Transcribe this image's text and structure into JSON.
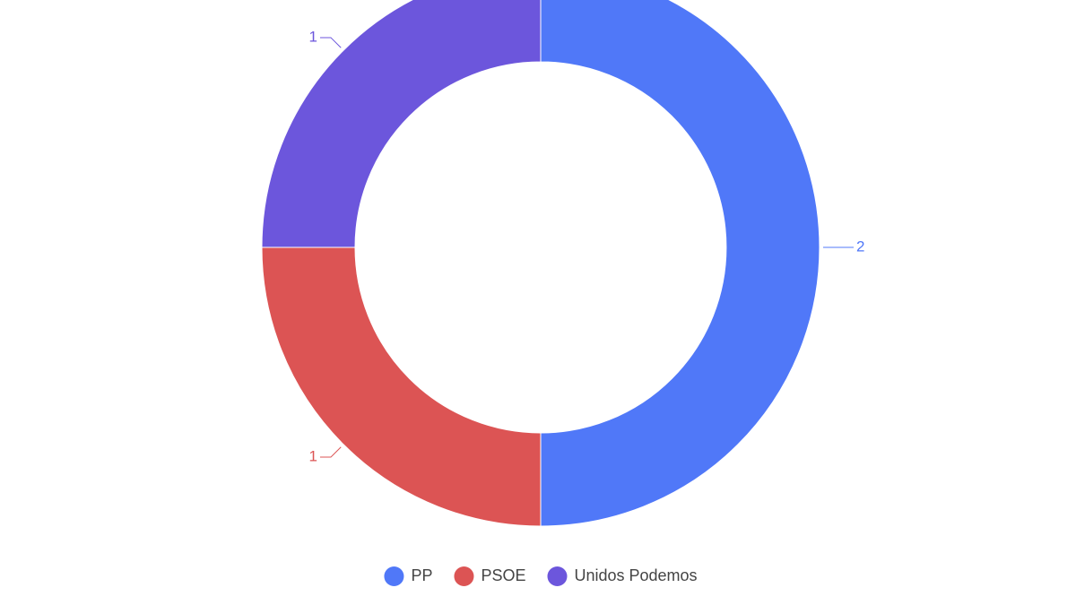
{
  "chart_data": {
    "type": "donut",
    "categories": [
      "PP",
      "PSOE",
      "Unidos Podemos"
    ],
    "values": [
      2,
      1,
      1
    ],
    "colors": [
      "#5078f8",
      "#dc5454",
      "#6c56dc"
    ],
    "legend": "bottom"
  }
}
